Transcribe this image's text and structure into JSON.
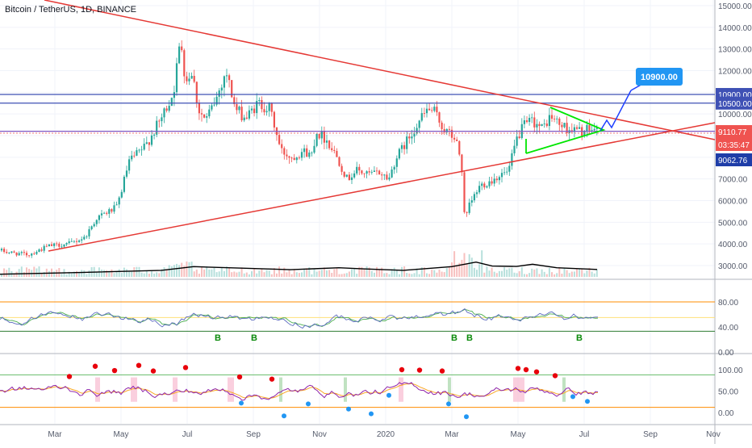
{
  "header": {
    "symbol_title": "Bitcoin / TetherUS, 1D, BINANCE"
  },
  "colors": {
    "up": "#26a69a",
    "down": "#ef5350",
    "trendline": "#e53935",
    "hline": "#3f51b5",
    "triangle": "#00e600",
    "projection": "#1e40ff",
    "callout": "#2196f3",
    "price_label": "#ef5350",
    "countdown": "#ef5350",
    "low_label": "#1e3da8",
    "ma": "#000000",
    "rsi_orange": "#ff8c00",
    "osc_purple": "#8e24aa",
    "dot_red": "#e8000b",
    "dot_blue": "#2196f3",
    "b_green": "#0a8a0a"
  },
  "chart_data": [
    {
      "type": "candlestick",
      "title": "Bitcoin / TetherUS, 1D, BINANCE",
      "y_ticks": [
        "15000.00",
        "14000.00",
        "13000.00",
        "12000.00",
        "11000.00",
        "10000.00",
        "9000.00",
        "8000.00",
        "7000.00",
        "6000.00",
        "5000.00",
        "4000.00",
        "3000.00"
      ],
      "y_range": [
        2500,
        15300
      ],
      "x_ticks": [
        "Mar",
        "May",
        "Jul",
        "Sep",
        "Nov",
        "2020",
        "Mar",
        "May",
        "Jul",
        "Sep",
        "Nov"
      ],
      "path_key_points": [
        [
          0,
          3700
        ],
        [
          12,
          3600
        ],
        [
          35,
          3500
        ],
        [
          60,
          3900
        ],
        [
          85,
          4000
        ],
        [
          105,
          4300
        ],
        [
          120,
          5200
        ],
        [
          145,
          5700
        ],
        [
          160,
          7800
        ],
        [
          180,
          8500
        ],
        [
          200,
          9800
        ],
        [
          215,
          11000
        ],
        [
          224,
          13500
        ],
        [
          230,
          11500
        ],
        [
          238,
          12000
        ],
        [
          246,
          10200
        ],
        [
          255,
          9700
        ],
        [
          268,
          10700
        ],
        [
          280,
          12000
        ],
        [
          292,
          10200
        ],
        [
          305,
          9800
        ],
        [
          320,
          10500
        ],
        [
          335,
          10200
        ],
        [
          348,
          8300
        ],
        [
          362,
          8000
        ],
        [
          375,
          8300
        ],
        [
          386,
          8100
        ],
        [
          392,
          9200
        ],
        [
          405,
          8800
        ],
        [
          418,
          8000
        ],
        [
          430,
          7000
        ],
        [
          442,
          7400
        ],
        [
          456,
          7200
        ],
        [
          470,
          7300
        ],
        [
          482,
          7000
        ],
        [
          490,
          7900
        ],
        [
          505,
          8800
        ],
        [
          518,
          9600
        ],
        [
          530,
          10200
        ],
        [
          538,
          10100
        ],
        [
          550,
          9300
        ],
        [
          565,
          8800
        ],
        [
          572,
          7700
        ],
        [
          576,
          5000
        ],
        [
          582,
          5800
        ],
        [
          595,
          6700
        ],
        [
          608,
          6900
        ],
        [
          620,
          7200
        ],
        [
          630,
          7300
        ],
        [
          640,
          8800
        ],
        [
          648,
          9400
        ],
        [
          660,
          9700
        ],
        [
          672,
          9300
        ],
        [
          682,
          9900
        ],
        [
          694,
          9500
        ],
        [
          705,
          9300
        ],
        [
          720,
          9200
        ],
        [
          738,
          9300
        ],
        [
          742,
          9200
        ]
      ],
      "horizontal_levels": [
        {
          "label": "10900.00",
          "value": 10900,
          "color": "#3f51b5"
        },
        {
          "label": "10500.00",
          "value": 10500,
          "color": "#3f51b5"
        },
        {
          "label": "9110.77",
          "value": 9110.77,
          "color": "#ef5350"
        },
        {
          "label": "03:35:47",
          "value": 9110.77,
          "color": "#ef5350"
        },
        {
          "label": "9062.76",
          "value": 9062.76,
          "color": "#1e3da8"
        }
      ],
      "projection_target": "10900.00",
      "volume_ma": [
        [
          0,
          2600
        ],
        [
          100,
          2680
        ],
        [
          200,
          2780
        ],
        [
          240,
          2950
        ],
        [
          300,
          2880
        ],
        [
          360,
          2810
        ],
        [
          420,
          2900
        ],
        [
          450,
          2850
        ],
        [
          500,
          2780
        ],
        [
          560,
          2950
        ],
        [
          590,
          3160
        ],
        [
          610,
          2980
        ],
        [
          640,
          2960
        ],
        [
          660,
          3060
        ],
        [
          690,
          2900
        ],
        [
          740,
          2820
        ]
      ]
    },
    {
      "type": "line",
      "y_ticks": [
        "80.00",
        "40.00",
        "0.00"
      ],
      "y_range": [
        -5,
        100
      ],
      "markers": [
        "B",
        "B",
        "B",
        "B",
        "B"
      ]
    },
    {
      "type": "line",
      "y_ticks": [
        "100.00",
        "50.00",
        "0.00"
      ],
      "y_range": [
        -15,
        125
      ],
      "red_dots": 20,
      "blue_dots": 8
    }
  ]
}
